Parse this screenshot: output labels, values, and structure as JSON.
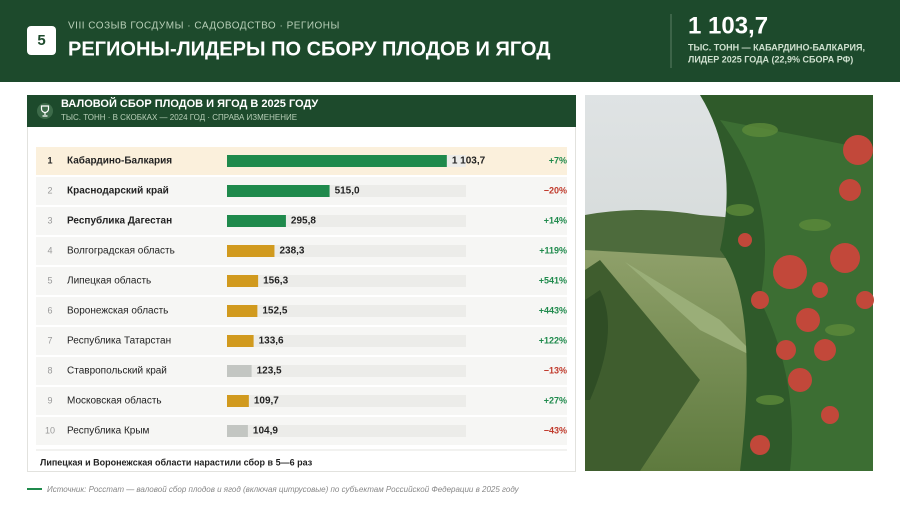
{
  "header": {
    "badge": "5",
    "kicker": "VIII СОЗЫВ ГОСДУМЫ · САДОВОДСТВО · РЕГИОНЫ",
    "title": "РЕГИОНЫ-ЛИДЕРЫ ПО СБОРУ ПЛОДОВ И ЯГОД",
    "stat": "1 103,7",
    "stat_caption": [
      "ТЫС. ТОНН — КАБАРДИНО-БАЛКАРИЯ,",
      "ЛИДЕР 2025 ГОДА (22,9% СБОРА РФ)"
    ]
  },
  "chart_data": {
    "type": "hbar",
    "title": "ВАЛОВОЙ СБОР ПЛОДОВ И ЯГОД В 2025 ГОДУ",
    "subtitle": "ТЫС. ТОНН · В СКОБКАХ — 2024 ГОД · СПРАВА ИЗМЕНЕНИЕ",
    "ranks": [
      1,
      2,
      3,
      4,
      5,
      6,
      7,
      8,
      9,
      10
    ],
    "categories": [
      "Кабардино-Балкария",
      "Краснодарский край",
      "Республика Дагестан",
      "Волгоградская область",
      "Липецкая область",
      "Воронежская область",
      "Республика Татарстан",
      "Ставропольский край",
      "Московская область",
      "Республика Крым"
    ],
    "values": [
      1103.7,
      515.0,
      295.8,
      238.3,
      156.3,
      152.5,
      133.6,
      123.5,
      109.7,
      104.9
    ],
    "value_labels": [
      "1 103,7",
      "515,0",
      "295,8",
      "238,3",
      "156,3",
      "152,5",
      "133,6",
      "123,5",
      "109,7",
      "104,9"
    ],
    "colors": [
      "#1f8a4c",
      "#1f8a4c",
      "#1f8a4c",
      "#d19a1e",
      "#d19a1e",
      "#d19a1e",
      "#d19a1e",
      "#c3c6c2",
      "#d19a1e",
      "#c3c6c2"
    ],
    "changes": [
      "+7%",
      "−20%",
      "+14%",
      "+119%",
      "+541%",
      "+443%",
      "+122%",
      "−13%",
      "+27%",
      "−43%"
    ],
    "change_colors": [
      "#1f8a4c",
      "#c0392b",
      "#1f8a4c",
      "#1f8a4c",
      "#1f8a4c",
      "#1f8a4c",
      "#1f8a4c",
      "#c0392b",
      "#1f8a4c",
      "#c0392b"
    ],
    "xlim": [
      0,
      1200
    ],
    "note": "Липецкая и Воронежская области нарастили сбор в 5—6 раз"
  },
  "source": "Источник: Росстат — валовой сбор плодов и ягод (включая цитрусовые) по субъектам Российской Федерации в 2025 году"
}
